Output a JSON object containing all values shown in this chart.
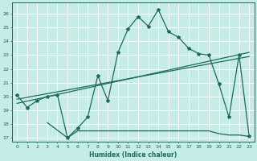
{
  "xlabel": "Humidex (Indice chaleur)",
  "background_color": "#c6ece8",
  "grid_color": "#ffffff",
  "line_color": "#1a6b5a",
  "xlim": [
    -0.5,
    23.5
  ],
  "ylim": [
    16.7,
    26.8
  ],
  "yticks": [
    17,
    18,
    19,
    20,
    21,
    22,
    23,
    24,
    25,
    26
  ],
  "xticks": [
    0,
    1,
    2,
    3,
    4,
    5,
    6,
    7,
    8,
    9,
    10,
    11,
    12,
    13,
    14,
    15,
    16,
    17,
    18,
    19,
    20,
    21,
    22,
    23
  ],
  "main_x": [
    0,
    1,
    2,
    3,
    4,
    5,
    6,
    7,
    8,
    9,
    10,
    11,
    12,
    13,
    14,
    15,
    16,
    17,
    18,
    19,
    20,
    21,
    22,
    23
  ],
  "main_y": [
    20.1,
    19.2,
    19.7,
    20.0,
    20.1,
    17.0,
    17.7,
    18.5,
    21.5,
    19.7,
    23.2,
    24.9,
    25.8,
    25.1,
    26.3,
    24.7,
    24.3,
    23.5,
    23.1,
    23.0,
    20.9,
    18.5,
    23.0,
    17.1
  ],
  "line1_x": [
    0,
    23
  ],
  "line1_y": [
    19.5,
    23.2
  ],
  "line2_x": [
    0,
    23
  ],
  "line2_y": [
    19.8,
    22.9
  ],
  "flat_x": [
    3,
    5,
    6,
    7,
    8,
    9,
    10,
    11,
    12,
    13,
    14,
    15,
    16,
    17,
    18,
    19,
    20,
    21,
    22,
    23
  ],
  "flat_y": [
    18.1,
    17.0,
    17.5,
    17.5,
    17.5,
    17.5,
    17.5,
    17.5,
    17.5,
    17.5,
    17.5,
    17.5,
    17.5,
    17.5,
    17.5,
    17.5,
    17.3,
    17.2,
    17.2,
    17.1
  ]
}
